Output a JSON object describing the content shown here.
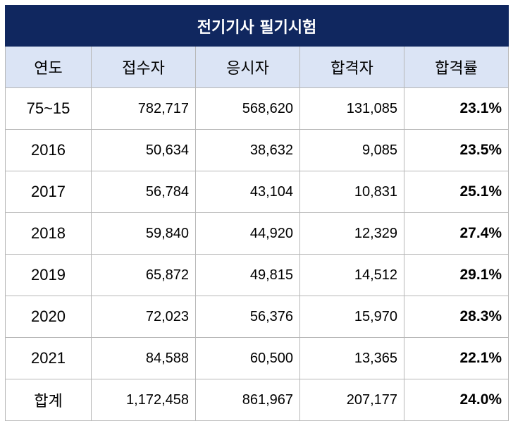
{
  "title": "전기기사 필기시험",
  "headers": [
    "연도",
    "접수자",
    "응시자",
    "합격자",
    "합격률"
  ],
  "rows": [
    {
      "year": "75~15",
      "applicants": "782,717",
      "examinees": "568,620",
      "passed": "131,085",
      "rate": "23.1%"
    },
    {
      "year": "2016",
      "applicants": "50,634",
      "examinees": "38,632",
      "passed": "9,085",
      "rate": "23.5%"
    },
    {
      "year": "2017",
      "applicants": "56,784",
      "examinees": "43,104",
      "passed": "10,831",
      "rate": "25.1%"
    },
    {
      "year": "2018",
      "applicants": "59,840",
      "examinees": "44,920",
      "passed": "12,329",
      "rate": "27.4%"
    },
    {
      "year": "2019",
      "applicants": "65,872",
      "examinees": "49,815",
      "passed": "14,512",
      "rate": "29.1%"
    },
    {
      "year": "2020",
      "applicants": "72,023",
      "examinees": "56,376",
      "passed": "15,970",
      "rate": "28.3%"
    },
    {
      "year": "2021",
      "applicants": "84,588",
      "examinees": "60,500",
      "passed": "13,365",
      "rate": "22.1%"
    },
    {
      "year": "합계",
      "applicants": "1,172,458",
      "examinees": "861,967",
      "passed": "207,177",
      "rate": "24.0%"
    }
  ],
  "colors": {
    "title_bg": "#10275f",
    "header_bg": "#dbe4f5",
    "border": "#b7b7b7"
  }
}
